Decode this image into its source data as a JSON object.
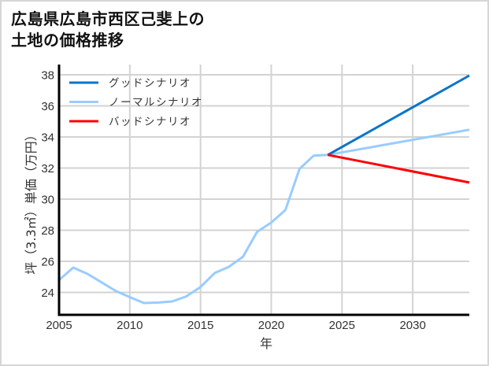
{
  "title": {
    "line1": "広島県広島市西区己斐上の",
    "line2": "土地の価格推移"
  },
  "chart_data": {
    "type": "line",
    "title": "広島県広島市西区己斐上の土地の価格推移",
    "xlabel": "年",
    "ylabel": "坪（3.3㎡）単価（万円）",
    "xlim": [
      2005,
      2034
    ],
    "ylim": [
      22.56,
      38.66
    ],
    "xticks": [
      2005,
      2010,
      2015,
      2020,
      2025,
      2030
    ],
    "yticks": [
      24,
      26,
      28,
      30,
      32,
      34,
      36,
      38
    ],
    "grid": true,
    "legend_position": "upper left",
    "series": [
      {
        "name": "グッドシナリオ",
        "color": "#0a74c9",
        "x": [
          2024,
          2034
        ],
        "values": [
          32.85,
          37.95
        ]
      },
      {
        "name": "ノーマルシナリオ",
        "color": "#99ccff",
        "x": [
          2005,
          2006,
          2007,
          2008,
          2009,
          2010,
          2011,
          2012,
          2013,
          2014,
          2015,
          2016,
          2017,
          2018,
          2019,
          2020,
          2021,
          2022,
          2023,
          2024,
          2034
        ],
        "values": [
          24.8,
          25.6,
          25.2,
          24.65,
          24.1,
          23.7,
          23.32,
          23.35,
          23.42,
          23.75,
          24.35,
          25.25,
          25.65,
          26.3,
          27.9,
          28.5,
          29.3,
          31.95,
          32.8,
          32.85,
          34.47
        ]
      },
      {
        "name": "バッドシナリオ",
        "color": "#ff0000",
        "x": [
          2024,
          2034
        ],
        "values": [
          32.85,
          31.07
        ]
      }
    ]
  }
}
